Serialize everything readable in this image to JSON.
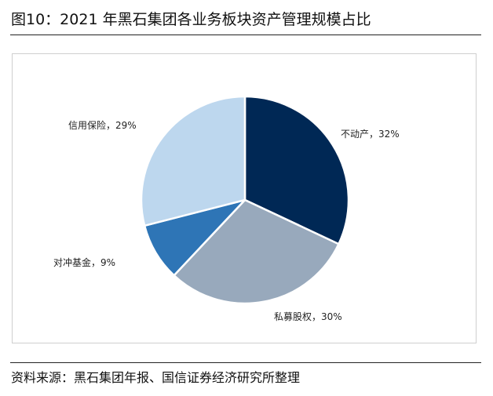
{
  "figure": {
    "title": "图10：2021 年黑石集团各业务板块资产管理规模占比",
    "source": "资料来源：黑石集团年报、国信证券经济研究所整理"
  },
  "chart_data": {
    "type": "pie",
    "start_angle_deg": 0,
    "direction": "clockwise",
    "slices": [
      {
        "name": "不动产",
        "value": 32,
        "label": "不动产，32%",
        "color": "#002855"
      },
      {
        "name": "私募股权",
        "value": 30,
        "label": "私募股权，30%",
        "color": "#98A9BC"
      },
      {
        "name": "对冲基金",
        "value": 9,
        "label": "对冲基金，9%",
        "color": "#2E75B6"
      },
      {
        "name": "信用保险",
        "value": 29,
        "label": "信用保险，29%",
        "color": "#BDD7EE"
      }
    ]
  }
}
